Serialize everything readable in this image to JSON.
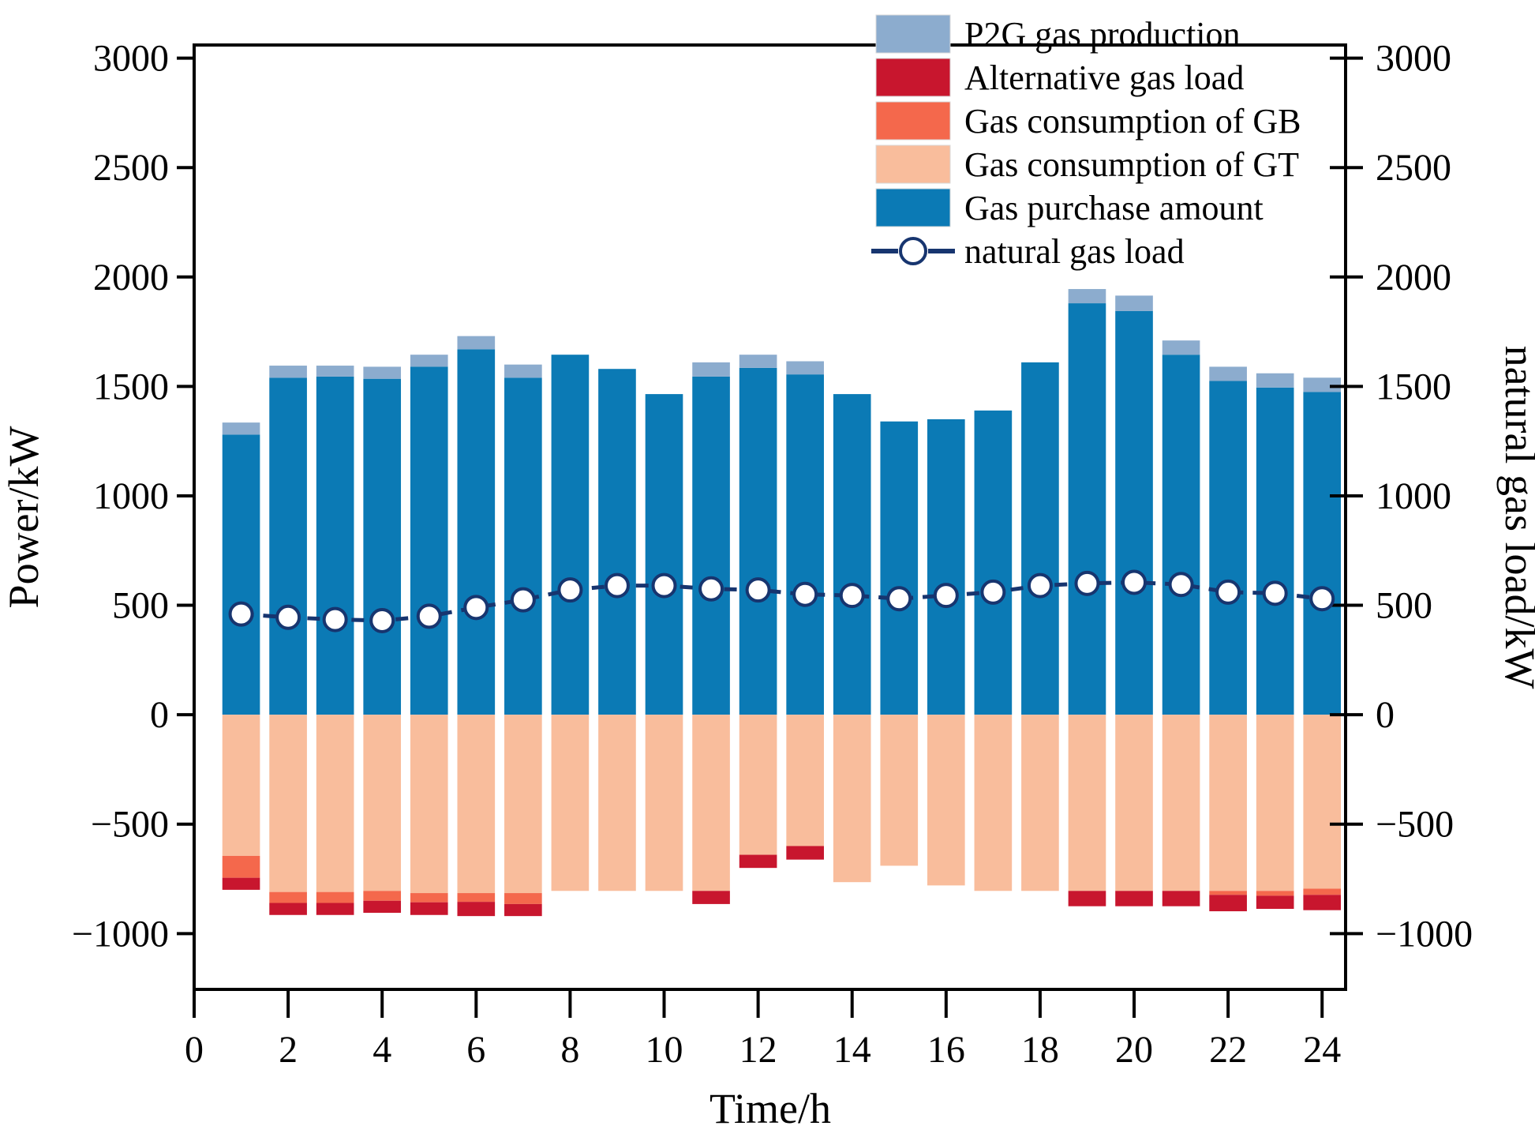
{
  "chart_data": {
    "type": "bar",
    "title": "",
    "xlabel": "Time/h",
    "ylabel_left": "Power/kW",
    "ylabel_right": "natural gas load/kW",
    "x_hours": [
      1,
      2,
      3,
      4,
      5,
      6,
      7,
      8,
      9,
      10,
      11,
      12,
      13,
      14,
      15,
      16,
      17,
      18,
      19,
      20,
      21,
      22,
      23,
      24
    ],
    "xlim": [
      0,
      24.5
    ],
    "ylim": [
      -1255,
      3060
    ],
    "xticks": [
      0,
      2,
      4,
      6,
      8,
      10,
      12,
      14,
      16,
      18,
      20,
      22,
      24
    ],
    "yticks_left": [
      -1000,
      -500,
      0,
      500,
      1000,
      1500,
      2000,
      2500,
      3000
    ],
    "yticks_right": [
      -1000,
      -500,
      0,
      500,
      1000,
      1500,
      2000,
      2500,
      3000
    ],
    "bar_width_hours": 0.8,
    "grid": false,
    "legend_position": "inside-top-center",
    "series": [
      {
        "name": "Gas purchase amount",
        "stack": "positive",
        "order": 1,
        "color": "#0b7ab5",
        "values": [
          1280,
          1540,
          1545,
          1535,
          1590,
          1670,
          1540,
          1645,
          1580,
          1465,
          1545,
          1585,
          1555,
          1465,
          1340,
          1350,
          1390,
          1610,
          1880,
          1845,
          1645,
          1525,
          1495,
          1475
        ]
      },
      {
        "name": "P2G gas production",
        "stack": "positive",
        "order": 2,
        "color": "#8cacce",
        "values": [
          55,
          55,
          50,
          55,
          55,
          60,
          60,
          0,
          0,
          0,
          65,
          60,
          60,
          0,
          0,
          0,
          0,
          0,
          65,
          70,
          65,
          65,
          65,
          65
        ]
      },
      {
        "name": "Gas consumption of GT",
        "stack": "negative",
        "order": 1,
        "color": "#f9bd9c",
        "values": [
          645,
          810,
          810,
          805,
          815,
          815,
          815,
          805,
          805,
          805,
          805,
          640,
          600,
          765,
          690,
          780,
          805,
          805,
          805,
          805,
          805,
          805,
          805,
          795
        ]
      },
      {
        "name": "Gas consumption of GB",
        "stack": "negative",
        "order": 2,
        "color": "#f4684c",
        "values": [
          100,
          50,
          50,
          45,
          42,
          40,
          50,
          0,
          0,
          0,
          0,
          0,
          0,
          0,
          0,
          0,
          0,
          0,
          0,
          0,
          0,
          18,
          22,
          28
        ]
      },
      {
        "name": "Alternative gas load",
        "stack": "negative",
        "order": 3,
        "color": "#c8162e",
        "values": [
          55,
          55,
          55,
          55,
          58,
          65,
          55,
          0,
          0,
          0,
          60,
          60,
          62,
          0,
          0,
          0,
          0,
          0,
          70,
          70,
          70,
          75,
          60,
          70
        ]
      }
    ],
    "line_series": {
      "name": "natural gas load",
      "color": "#17356f",
      "marker": "open-circle",
      "axis": "right",
      "values": [
        460,
        445,
        435,
        430,
        450,
        490,
        525,
        570,
        590,
        590,
        575,
        570,
        550,
        545,
        530,
        545,
        560,
        590,
        600,
        605,
        595,
        560,
        555,
        530
      ]
    },
    "legend_items": [
      {
        "label": "P2G gas production",
        "type": "swatch",
        "color": "#8cacce"
      },
      {
        "label": "Alternative gas load",
        "type": "swatch",
        "color": "#c8162e"
      },
      {
        "label": "Gas consumption of GB",
        "type": "swatch",
        "color": "#f4684c"
      },
      {
        "label": "Gas consumption of GT",
        "type": "swatch",
        "color": "#f9bd9c"
      },
      {
        "label": "Gas purchase amount",
        "type": "swatch",
        "color": "#0b7ab5"
      },
      {
        "label": "natural gas load",
        "type": "line-marker",
        "color": "#17356f"
      }
    ]
  }
}
